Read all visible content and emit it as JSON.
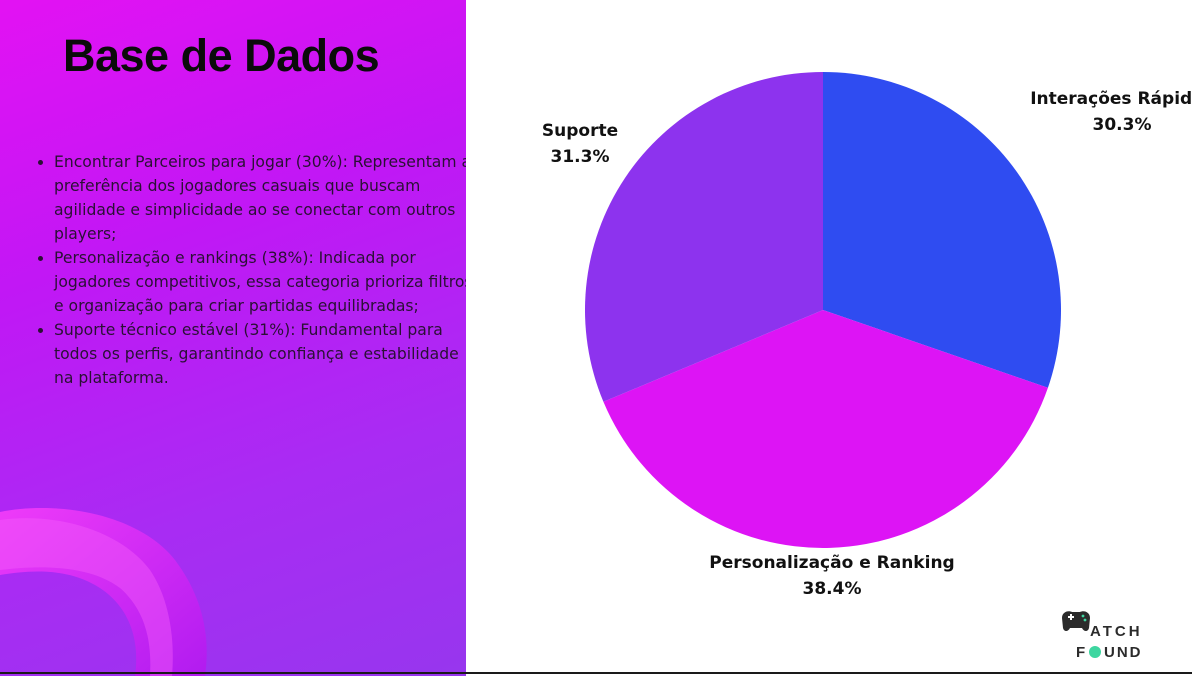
{
  "slide": {
    "title": "Base de Dados",
    "bullets": [
      "Encontrar Parceiros para jogar (30%): Representam a preferência dos jogadores casuais que buscam agilidade e simplicidade ao se conectar com outros players;",
      "Personalização e rankings (38%): Indicada por jogadores competitivos, essa categoria prioriza filtros e organização para criar partidas equilibradas;",
      "Suporte técnico estável (31%): Fundamental para todos os perfis, garantindo confiança e estabilidade na plataforma."
    ]
  },
  "chart_data": {
    "type": "pie",
    "title": "",
    "slices": [
      {
        "label": "Interações Rápidas",
        "value": 30.3,
        "display": "30.3%",
        "color": "#2f4cf1"
      },
      {
        "label": "Personalização e Ranking",
        "value": 38.4,
        "display": "38.4%",
        "color": "#dd14f5"
      },
      {
        "label": "Suporte",
        "value": 31.3,
        "display": "31.3%",
        "color": "#8d33ee"
      }
    ],
    "start": "top",
    "direction": "clockwise",
    "legend": "none",
    "labels": "outside"
  },
  "logo": {
    "line1": "ATCH",
    "line2": "F",
    "line3": "UND"
  },
  "colors": {
    "panel_gradient_start": "#e312f3",
    "panel_gradient_end": "#9736ee",
    "logo_green": "#3ed6a0",
    "logo_dark": "#2b2b2b"
  }
}
